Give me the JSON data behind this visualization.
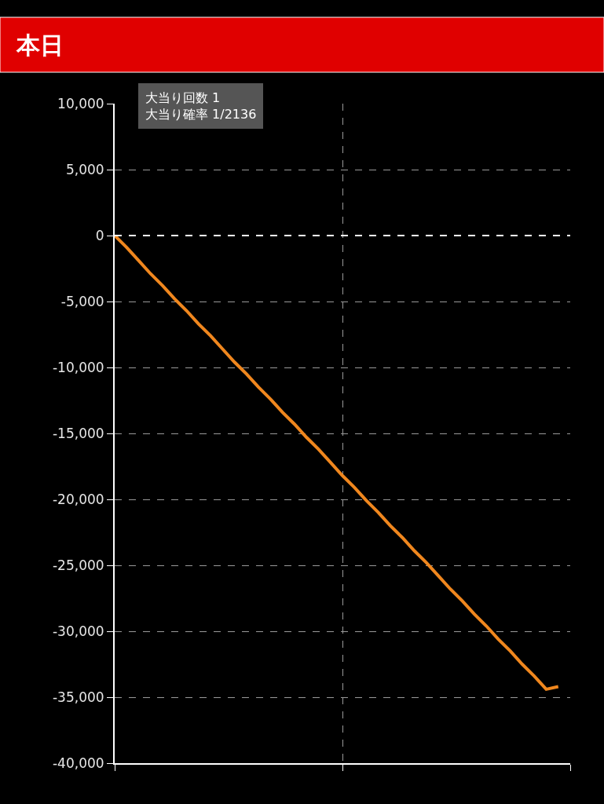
{
  "chart_data": {
    "type": "line",
    "title": "本日",
    "categories": [
      null,
      null,
      null,
      null,
      null,
      null,
      null,
      null,
      null,
      null,
      null,
      null,
      null,
      null,
      null,
      null,
      null,
      null,
      null,
      null,
      null,
      null,
      null,
      null,
      null,
      null,
      null,
      null,
      null,
      null,
      null,
      null,
      null,
      null,
      null,
      null,
      null,
      null,
      null
    ],
    "series": [
      {
        "color": "#f0871e",
        "values": [
          0,
          -900,
          -1900,
          -2900,
          -3800,
          -4800,
          -5700,
          -6700,
          -7600,
          -8600,
          -9600,
          -10500,
          -11500,
          -12400,
          -13400,
          -14300,
          -15300,
          -16200,
          -17200,
          -18200,
          -19100,
          -20100,
          -21000,
          -22000,
          -22900,
          -23900,
          -24800,
          -25800,
          -26800,
          -27700,
          -28700,
          -29600,
          -30600,
          -31500,
          -32500,
          -33400,
          -34400,
          -34200,
          null
        ]
      }
    ],
    "ylim": [
      -40000,
      10000
    ],
    "yticks": [
      {
        "value": 10000,
        "label": "10,000"
      },
      {
        "value": 5000,
        "label": "5,000"
      },
      0,
      {
        "value": -5000,
        "label": "-5,000"
      },
      {
        "value": -10000,
        "label": "-10,000"
      },
      {
        "value": -15000,
        "label": "-15,000"
      },
      {
        "value": -20000,
        "label": "-20,000"
      },
      {
        "value": -25000,
        "label": "-25,000"
      },
      {
        "value": -30000,
        "label": "-30,000"
      },
      {
        "value": -35000,
        "label": "-35,000"
      },
      {
        "value": -40000,
        "label": "-40,000"
      }
    ],
    "grid": true,
    "marker": "none",
    "line_style": "solid",
    "tick_labels": "y",
    "ref_lines": [
      {
        "axis": "y",
        "value": 0,
        "color": "#ffffff",
        "line_style": "dashed"
      }
    ],
    "annotations": [
      "大当り回数 1",
      "大当り確率 1/2136"
    ]
  }
}
